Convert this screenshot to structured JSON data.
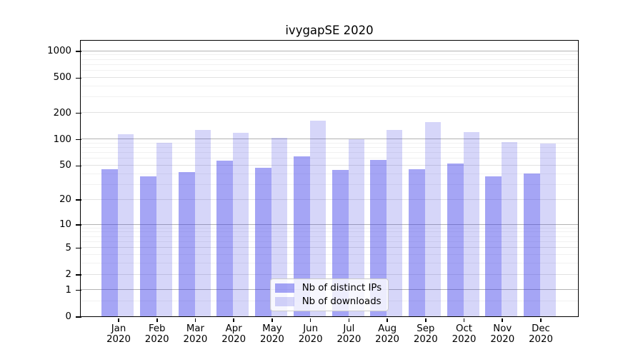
{
  "chart_data": {
    "type": "bar",
    "title": "ivygapSE 2020",
    "categories": [
      "Jan",
      "Feb",
      "Mar",
      "Apr",
      "May",
      "Jun",
      "Jul",
      "Aug",
      "Sep",
      "Oct",
      "Nov",
      "Dec"
    ],
    "x_year_label": "2020",
    "series": [
      {
        "name": "Nb of distinct IPs",
        "color": "#a3a3f3",
        "fill": "rgba(55,55,232,0.45)",
        "values": [
          45,
          37,
          42,
          57,
          47,
          64,
          44,
          58,
          45,
          52,
          37,
          40
        ]
      },
      {
        "name": "Nb of downloads",
        "color": "#d6d6f9",
        "fill": "rgba(50,50,225,0.2)",
        "values": [
          113,
          91,
          126,
          118,
          103,
          162,
          100,
          128,
          156,
          121,
          93,
          89
        ]
      }
    ],
    "yscale": "log1p",
    "yticks": [
      0,
      1,
      2,
      5,
      10,
      20,
      50,
      100,
      200,
      500,
      1000
    ],
    "ylim": [
      0,
      1300
    ],
    "grid": true,
    "legend_position": "lower center",
    "grid_colors": {
      "power_of_ten": "#b3b3b3",
      "labeled": "#e2e2e2",
      "minor": "#f1f1f1"
    }
  }
}
